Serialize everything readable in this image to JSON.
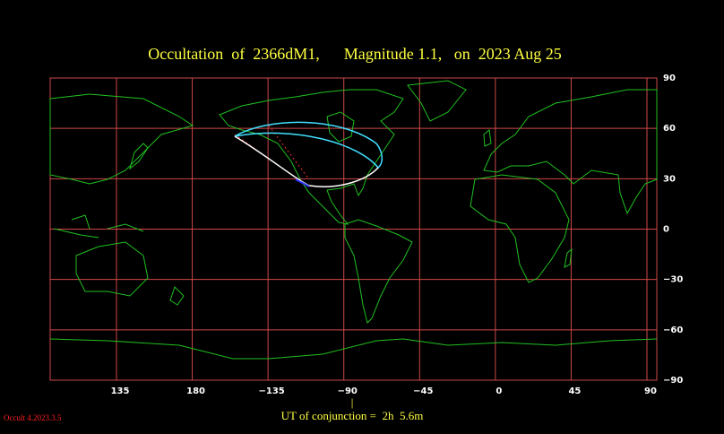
{
  "title": "Occultation  of  2366dM1,      Magnitude 1.1,   on  2023 Aug 25",
  "map": {
    "lon_ticks": [
      135,
      180,
      {
        "value": -135,
        "label": "−135"
      },
      {
        "value": -90,
        "label": "−90"
      },
      {
        "value": -45,
        "label": "−45"
      },
      0,
      45,
      90
    ],
    "lat_ticks": [
      90,
      60,
      30,
      0,
      {
        "value": -30,
        "label": "−30"
      },
      {
        "value": -60,
        "label": "−60"
      },
      {
        "value": -90,
        "label": "−90"
      }
    ],
    "conjunction_marker": "|",
    "conjunction_label": "UT of conjunction =  2h  5.6m"
  },
  "version": "Occult 4.2023.3.5"
}
